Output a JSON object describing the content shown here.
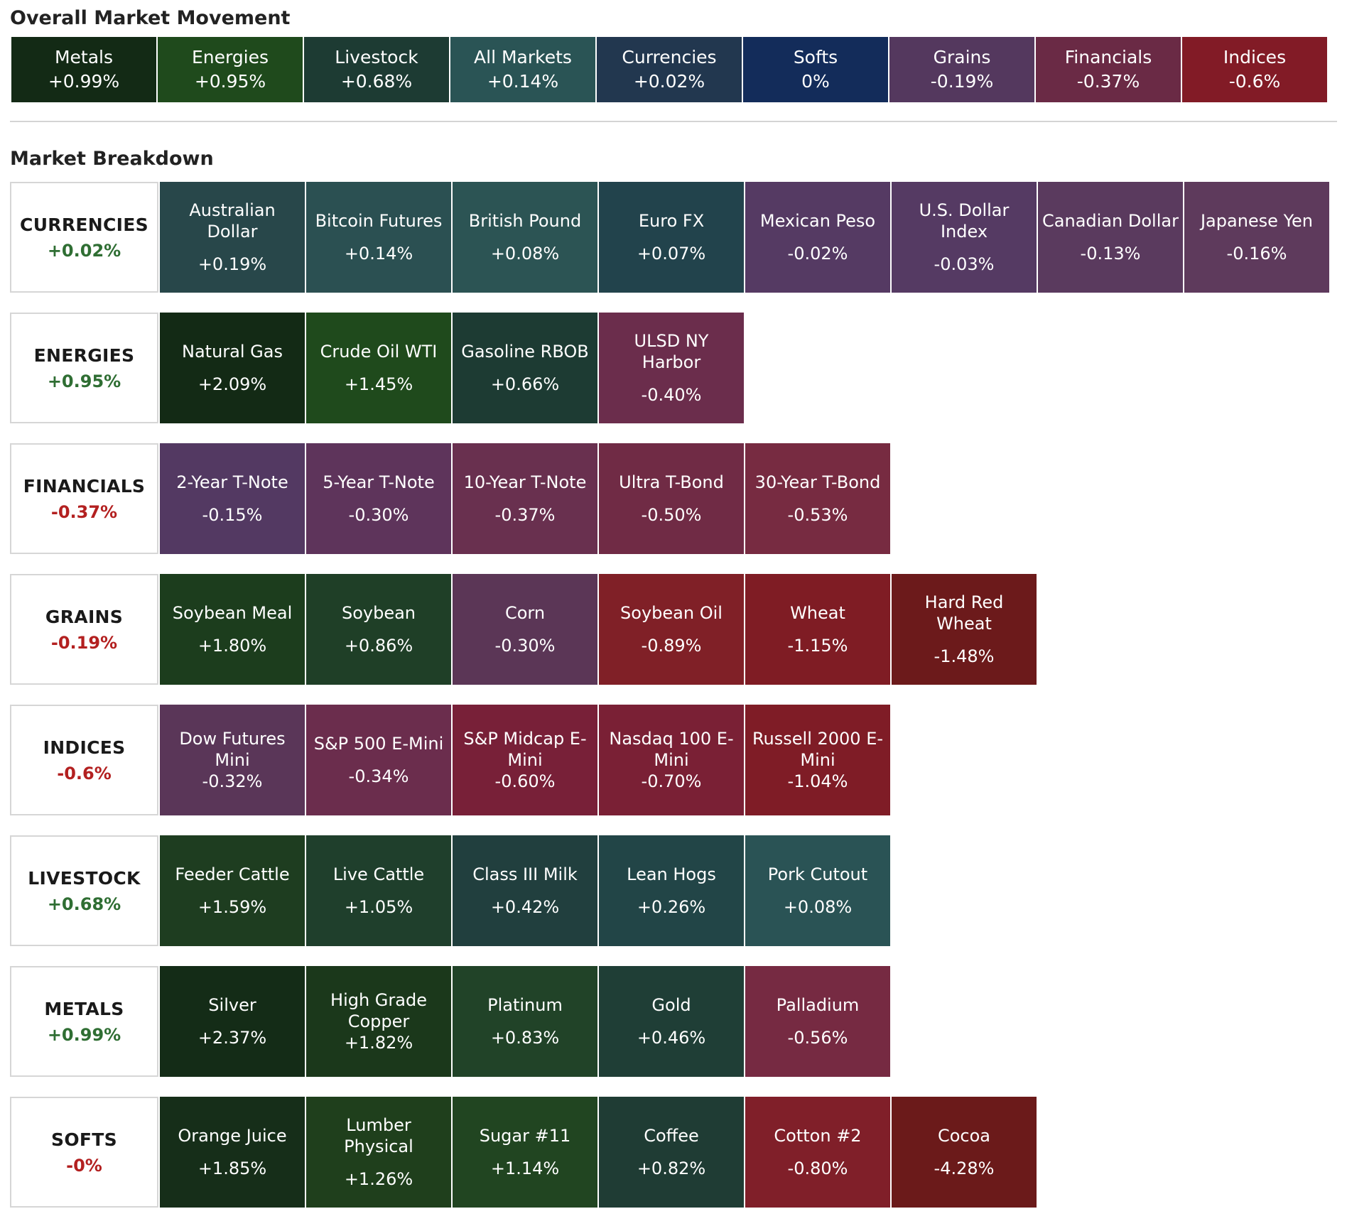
{
  "overall": {
    "title": "Overall Market Movement",
    "tiles": [
      {
        "label": "Metals",
        "value": "+0.99%",
        "color": "#132a15"
      },
      {
        "label": "Energies",
        "value": "+0.95%",
        "color": "#1f4a1c"
      },
      {
        "label": "Livestock",
        "value": "+0.68%",
        "color": "#1d3b33"
      },
      {
        "label": "All Markets",
        "value": "+0.14%",
        "color": "#2a5455"
      },
      {
        "label": "Currencies",
        "value": "+0.02%",
        "color": "#22374f"
      },
      {
        "label": "Softs",
        "value": "0%",
        "color": "#132c5a"
      },
      {
        "label": "Grains",
        "value": "-0.19%",
        "color": "#54385e"
      },
      {
        "label": "Financials",
        "value": "-0.37%",
        "color": "#6a2a45"
      },
      {
        "label": "Indices",
        "value": "-0.6%",
        "color": "#821b26"
      }
    ]
  },
  "breakdown": {
    "title": "Market Breakdown",
    "rows": [
      {
        "name": "CURRENCIES",
        "value": "+0.02%",
        "sign": "pos",
        "tiles": [
          {
            "name": "Australian Dollar",
            "value": "+0.19%",
            "color": "#28474a"
          },
          {
            "name": "Bitcoin Futures",
            "value": "+0.14%",
            "color": "#2b5052"
          },
          {
            "name": "British Pound",
            "value": "+0.08%",
            "color": "#2c5454"
          },
          {
            "name": "Euro FX",
            "value": "+0.07%",
            "color": "#22434c"
          },
          {
            "name": "Mexican Peso",
            "value": "-0.02%",
            "color": "#553a63"
          },
          {
            "name": "U.S. Dollar Index",
            "value": "-0.03%",
            "color": "#553a63"
          },
          {
            "name": "Canadian Dollar",
            "value": "-0.13%",
            "color": "#5a3a5e"
          },
          {
            "name": "Japanese Yen",
            "value": "-0.16%",
            "color": "#5e3a5c"
          }
        ]
      },
      {
        "name": "ENERGIES",
        "value": "+0.95%",
        "sign": "pos",
        "tiles": [
          {
            "name": "Natural Gas",
            "value": "+2.09%",
            "color": "#132a15"
          },
          {
            "name": "Crude Oil WTI",
            "value": "+1.45%",
            "color": "#1f4a1c"
          },
          {
            "name": "Gasoline RBOB",
            "value": "+0.66%",
            "color": "#1d3b33"
          },
          {
            "name": "ULSD NY Harbor",
            "value": "-0.40%",
            "color": "#6b2d4c"
          }
        ]
      },
      {
        "name": "FINANCIALS",
        "value": "-0.37%",
        "sign": "neg",
        "tiles": [
          {
            "name": "2-Year T-Note",
            "value": "-0.15%",
            "color": "#533962"
          },
          {
            "name": "5-Year T-Note",
            "value": "-0.30%",
            "color": "#5e345b"
          },
          {
            "name": "10-Year T-Note",
            "value": "-0.37%",
            "color": "#69304f"
          },
          {
            "name": "Ultra T-Bond",
            "value": "-0.50%",
            "color": "#702b45"
          },
          {
            "name": "30-Year T-Bond",
            "value": "-0.53%",
            "color": "#772b41"
          }
        ]
      },
      {
        "name": "GRAINS",
        "value": "-0.19%",
        "sign": "neg",
        "tiles": [
          {
            "name": "Soybean Meal",
            "value": "+1.80%",
            "color": "#1c3d1d"
          },
          {
            "name": "Soybean",
            "value": "+0.86%",
            "color": "#1f3f27"
          },
          {
            "name": "Corn",
            "value": "-0.30%",
            "color": "#5b3656"
          },
          {
            "name": "Soybean Oil",
            "value": "-0.89%",
            "color": "#802027"
          },
          {
            "name": "Wheat",
            "value": "-1.15%",
            "color": "#7f1c24"
          },
          {
            "name": "Hard Red Wheat",
            "value": "-1.48%",
            "color": "#6c1a1b"
          }
        ]
      },
      {
        "name": "INDICES",
        "value": "-0.6%",
        "sign": "neg",
        "tiles": [
          {
            "name": "Dow Futures Mini",
            "value": "-0.32%",
            "color": "#5a3658",
            "wrap": true
          },
          {
            "name": "S&P 500 E-Mini",
            "value": "-0.34%",
            "color": "#6b2d4d"
          },
          {
            "name": "S&P Midcap E-Mini",
            "value": "-0.60%",
            "color": "#782038",
            "wrap": true
          },
          {
            "name": "Nasdaq 100 E-Mini",
            "value": "-0.70%",
            "color": "#7a2035",
            "wrap": true
          },
          {
            "name": "Russell 2000 E-Mini",
            "value": "-1.04%",
            "color": "#7f1c26",
            "wrap": true
          }
        ]
      },
      {
        "name": "LIVESTOCK",
        "value": "+0.68%",
        "sign": "pos",
        "tiles": [
          {
            "name": "Feeder Cattle",
            "value": "+1.59%",
            "color": "#1e3d20"
          },
          {
            "name": "Live Cattle",
            "value": "+1.05%",
            "color": "#1f3f2c"
          },
          {
            "name": "Class III Milk",
            "value": "+0.42%",
            "color": "#213f3e"
          },
          {
            "name": "Lean Hogs",
            "value": "+0.26%",
            "color": "#224547"
          },
          {
            "name": "Pork Cutout",
            "value": "+0.08%",
            "color": "#2a5355"
          }
        ]
      },
      {
        "name": "METALS",
        "value": "+0.99%",
        "sign": "pos",
        "tiles": [
          {
            "name": "Silver",
            "value": "+2.37%",
            "color": "#142c17"
          },
          {
            "name": "High Grade Copper",
            "value": "+1.82%",
            "color": "#1b381b",
            "wrap": true
          },
          {
            "name": "Platinum",
            "value": "+0.83%",
            "color": "#214328"
          },
          {
            "name": "Gold",
            "value": "+0.46%",
            "color": "#1f3e36"
          },
          {
            "name": "Palladium",
            "value": "-0.56%",
            "color": "#762a42"
          }
        ]
      },
      {
        "name": "SOFTS",
        "value": "-0%",
        "sign": "neg",
        "tiles": [
          {
            "name": "Orange Juice",
            "value": "+1.85%",
            "color": "#162e19"
          },
          {
            "name": "Lumber Physical",
            "value": "+1.26%",
            "color": "#1f3f1c"
          },
          {
            "name": "Sugar #11",
            "value": "+1.14%",
            "color": "#214521"
          },
          {
            "name": "Coffee",
            "value": "+0.82%",
            "color": "#1f3c34"
          },
          {
            "name": "Cotton #2",
            "value": "-0.80%",
            "color": "#801f29"
          },
          {
            "name": "Cocoa",
            "value": "-4.28%",
            "color": "#6b1a1a"
          }
        ]
      }
    ]
  }
}
